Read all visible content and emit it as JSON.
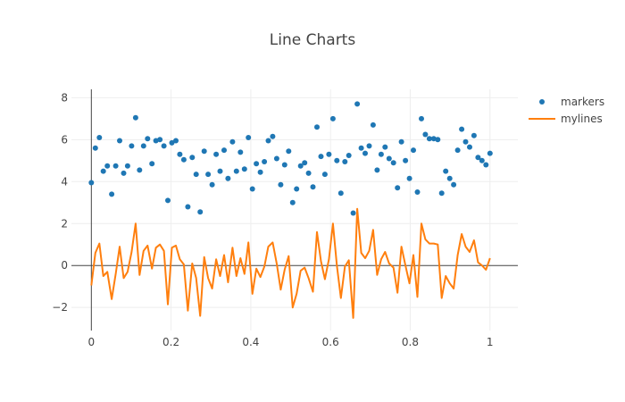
{
  "chart_data": {
    "type": "line",
    "title": "Line Charts",
    "xlim": [
      -0.05,
      1.07
    ],
    "ylim": [
      -3.1,
      8.4
    ],
    "x_ticks": [
      0,
      0.2,
      0.4,
      0.6,
      0.8,
      1
    ],
    "x_tick_labels": [
      "0",
      "0.2",
      "0.4",
      "0.6",
      "0.8",
      "1"
    ],
    "y_ticks": [
      -2,
      0,
      2,
      4,
      6,
      8
    ],
    "y_tick_labels": [
      "−2",
      "0",
      "2",
      "4",
      "6",
      "8"
    ],
    "grid": true,
    "legend_position": "top-right",
    "series": [
      {
        "name": "markers",
        "mode": "markers",
        "color": "#1f77b4",
        "x": [
          0.0,
          0.01,
          0.02,
          0.03,
          0.04,
          0.051,
          0.061,
          0.071,
          0.081,
          0.091,
          0.101,
          0.111,
          0.121,
          0.131,
          0.141,
          0.152,
          0.162,
          0.172,
          0.182,
          0.192,
          0.202,
          0.212,
          0.222,
          0.232,
          0.242,
          0.253,
          0.263,
          0.273,
          0.283,
          0.293,
          0.303,
          0.313,
          0.323,
          0.333,
          0.343,
          0.354,
          0.364,
          0.374,
          0.384,
          0.394,
          0.404,
          0.414,
          0.424,
          0.434,
          0.444,
          0.455,
          0.465,
          0.475,
          0.485,
          0.495,
          0.505,
          0.515,
          0.525,
          0.535,
          0.545,
          0.556,
          0.566,
          0.576,
          0.586,
          0.596,
          0.606,
          0.616,
          0.626,
          0.636,
          0.646,
          0.657,
          0.667,
          0.677,
          0.687,
          0.697,
          0.707,
          0.717,
          0.727,
          0.737,
          0.747,
          0.758,
          0.768,
          0.778,
          0.788,
          0.798,
          0.808,
          0.818,
          0.828,
          0.838,
          0.848,
          0.859,
          0.869,
          0.879,
          0.889,
          0.899,
          0.909,
          0.919,
          0.929,
          0.939,
          0.949,
          0.96,
          0.97,
          0.98,
          0.99,
          1.0
        ],
        "y": [
          3.95,
          5.6,
          6.1,
          4.5,
          4.75,
          3.4,
          4.75,
          5.95,
          4.4,
          4.75,
          5.7,
          7.05,
          4.55,
          5.7,
          6.05,
          4.85,
          5.95,
          6.0,
          5.7,
          3.1,
          5.85,
          5.95,
          5.3,
          5.05,
          2.8,
          5.15,
          4.35,
          2.55,
          5.45,
          4.35,
          3.85,
          5.3,
          4.5,
          5.5,
          4.15,
          5.9,
          4.5,
          5.4,
          4.6,
          6.1,
          3.65,
          4.85,
          4.45,
          4.95,
          5.95,
          6.15,
          5.1,
          3.85,
          4.8,
          5.45,
          3.0,
          3.65,
          4.75,
          4.9,
          4.4,
          3.75,
          6.6,
          5.2,
          4.35,
          5.3,
          7.0,
          5.0,
          3.45,
          4.95,
          5.25,
          2.5,
          7.7,
          5.6,
          5.35,
          5.7,
          6.7,
          4.55,
          5.3,
          5.65,
          5.1,
          4.9,
          3.7,
          5.9,
          5.0,
          4.15,
          5.5,
          3.5,
          7.0,
          6.25,
          6.05,
          6.05,
          6.0,
          3.45,
          4.5,
          4.15,
          3.85,
          5.5,
          6.5,
          5.9,
          5.65,
          6.2,
          5.15,
          5.0,
          4.8,
          5.35
        ]
      },
      {
        "name": "mylines",
        "mode": "lines",
        "color": "#ff7f0e",
        "x": [
          0.0,
          0.01,
          0.02,
          0.03,
          0.04,
          0.051,
          0.061,
          0.071,
          0.081,
          0.091,
          0.101,
          0.111,
          0.121,
          0.131,
          0.141,
          0.152,
          0.162,
          0.172,
          0.182,
          0.192,
          0.202,
          0.212,
          0.222,
          0.232,
          0.242,
          0.253,
          0.263,
          0.273,
          0.283,
          0.293,
          0.303,
          0.313,
          0.323,
          0.333,
          0.343,
          0.354,
          0.364,
          0.374,
          0.384,
          0.394,
          0.404,
          0.414,
          0.424,
          0.434,
          0.444,
          0.455,
          0.465,
          0.475,
          0.485,
          0.495,
          0.505,
          0.515,
          0.525,
          0.535,
          0.545,
          0.556,
          0.566,
          0.576,
          0.586,
          0.596,
          0.606,
          0.616,
          0.626,
          0.636,
          0.646,
          0.657,
          0.667,
          0.677,
          0.687,
          0.697,
          0.707,
          0.717,
          0.727,
          0.737,
          0.747,
          0.758,
          0.768,
          0.778,
          0.788,
          0.798,
          0.808,
          0.818,
          0.828,
          0.838,
          0.848,
          0.859,
          0.869,
          0.879,
          0.889,
          0.899,
          0.909,
          0.919,
          0.929,
          0.939,
          0.949,
          0.96,
          0.97,
          0.98,
          0.99,
          1.0
        ],
        "y": [
          -0.95,
          0.6,
          1.05,
          -0.5,
          -0.3,
          -1.6,
          -0.4,
          0.9,
          -0.6,
          -0.3,
          0.65,
          2.0,
          -0.45,
          0.7,
          0.95,
          -0.15,
          0.85,
          1.0,
          0.7,
          -1.85,
          0.85,
          0.95,
          0.3,
          0.05,
          -2.15,
          0.1,
          -0.6,
          -2.4,
          0.4,
          -0.6,
          -1.1,
          0.3,
          -0.5,
          0.5,
          -0.8,
          0.85,
          -0.5,
          0.35,
          -0.4,
          1.1,
          -1.35,
          -0.15,
          -0.55,
          -0.05,
          0.9,
          1.1,
          0.1,
          -1.15,
          -0.2,
          0.45,
          -2.0,
          -1.35,
          -0.25,
          -0.1,
          -0.6,
          -1.25,
          1.6,
          0.2,
          -0.65,
          0.3,
          2.0,
          0.0,
          -1.55,
          -0.05,
          0.25,
          -2.5,
          2.7,
          0.6,
          0.35,
          0.7,
          1.7,
          -0.45,
          0.3,
          0.65,
          0.1,
          -0.1,
          -1.3,
          0.9,
          0.0,
          -0.85,
          0.5,
          -1.5,
          2.0,
          1.25,
          1.05,
          1.05,
          1.0,
          -1.55,
          -0.5,
          -0.85,
          -1.1,
          0.5,
          1.5,
          0.9,
          0.65,
          1.2,
          0.15,
          0.0,
          -0.2,
          0.35
        ]
      }
    ]
  }
}
